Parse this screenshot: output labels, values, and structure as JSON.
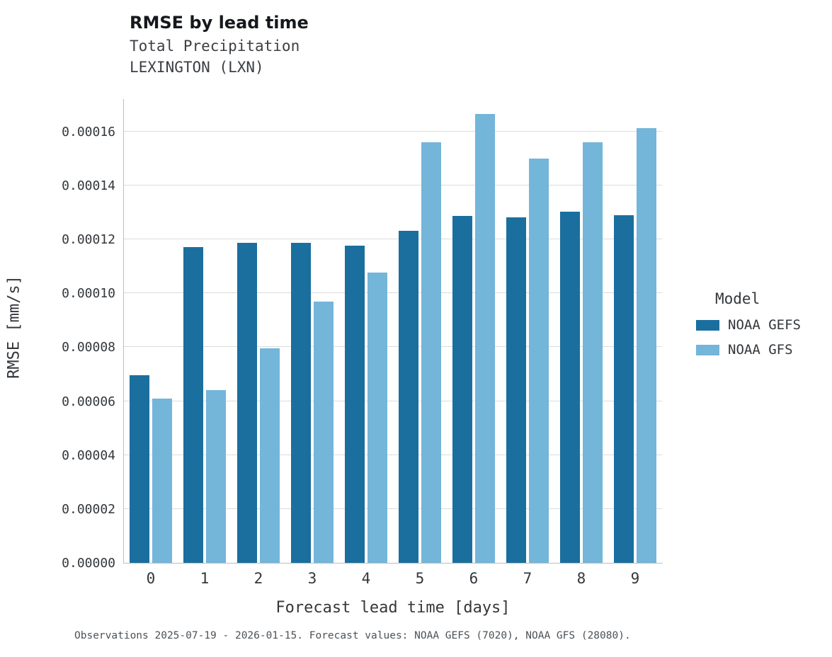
{
  "title": "RMSE by lead time",
  "subtitle1": "Total Precipitation",
  "subtitle2": "LEXINGTON (LXN)",
  "caption": "Observations 2025-07-19 - 2026-01-15. Forecast values: NOAA GEFS (7020), NOAA GFS (28080).",
  "legend": {
    "title": "Model"
  },
  "colors": {
    "gefs": "#1a6f9e",
    "gfs": "#74b5da",
    "grid": "#dcdcdc"
  },
  "chart_data": {
    "type": "bar",
    "title": "RMSE by lead time",
    "subtitle": "Total Precipitation — LEXINGTON (LXN)",
    "xlabel": "Forecast lead time [days]",
    "ylabel": "RMSE [mm/s]",
    "categories": [
      "0",
      "1",
      "2",
      "3",
      "4",
      "5",
      "6",
      "7",
      "8",
      "9"
    ],
    "series": [
      {
        "name": "NOAA GEFS",
        "color": "#1a6f9e",
        "values": [
          6.96e-05,
          0.0001171,
          0.0001187,
          0.0001186,
          0.0001177,
          0.0001232,
          0.0001287,
          0.0001281,
          0.0001303,
          0.000129
        ]
      },
      {
        "name": "NOAA GFS",
        "color": "#74b5da",
        "values": [
          6.08e-05,
          6.4e-05,
          7.97e-05,
          9.7e-05,
          0.0001076,
          0.000156,
          0.0001664,
          0.00015,
          0.0001561,
          0.0001613
        ]
      }
    ],
    "ylim": [
      0,
      0.000172
    ],
    "ytick_step": 2e-05,
    "ytick_max": 0.00016,
    "ytick_format_decimals": 5,
    "grid": true,
    "legend_position": "right"
  }
}
